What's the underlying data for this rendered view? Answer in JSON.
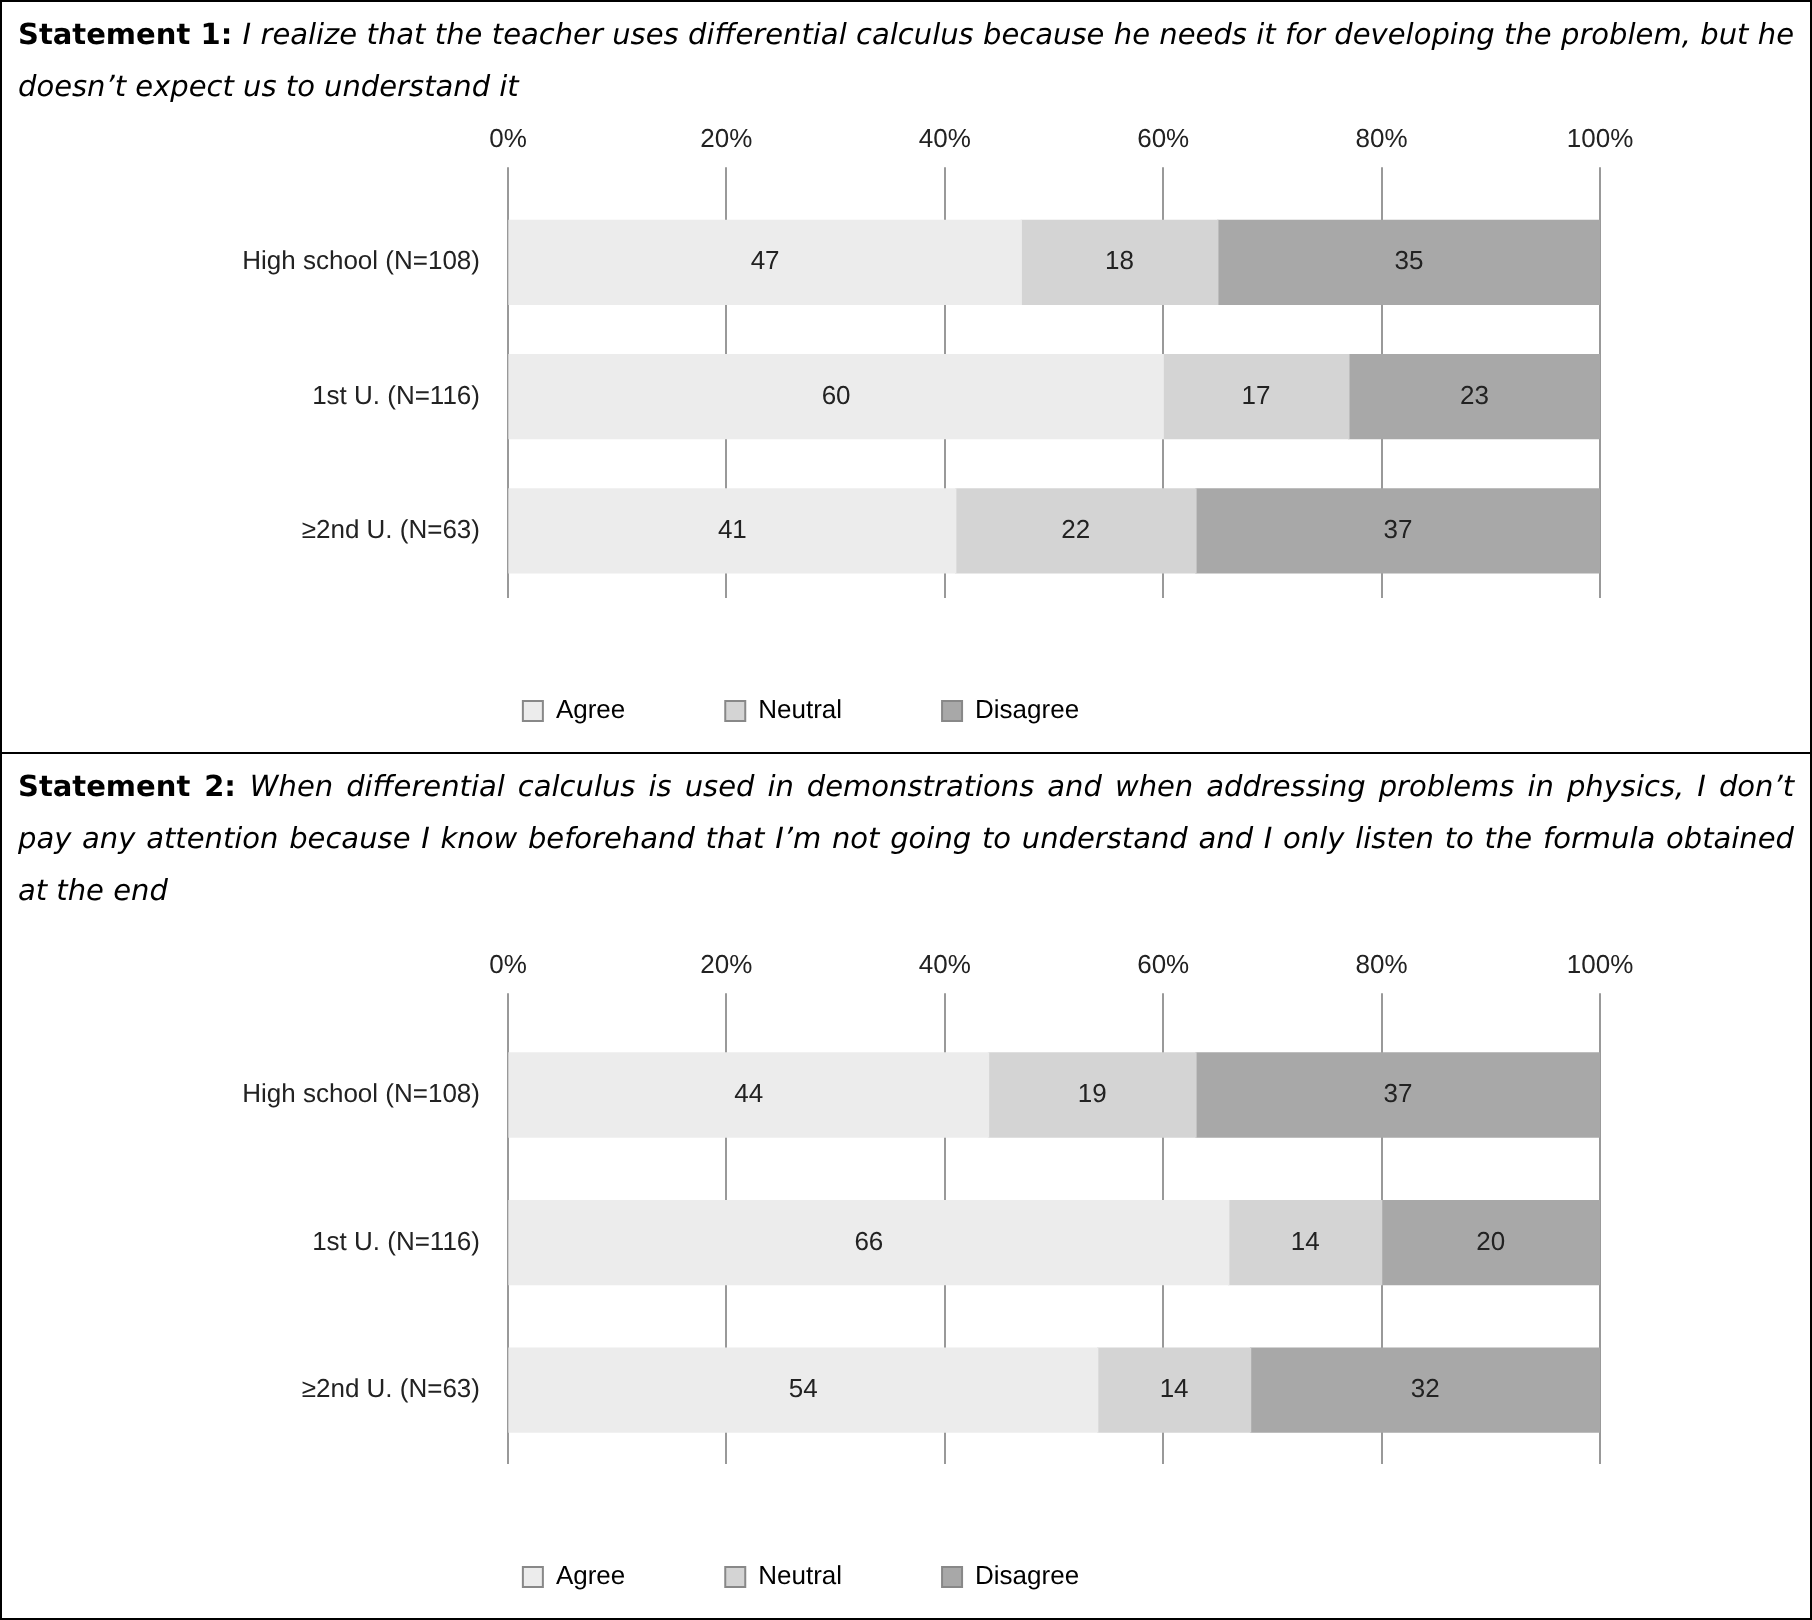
{
  "chart_data": [
    {
      "type": "bar",
      "orientation": "horizontal",
      "stacked": true,
      "title": "Statement 1: I realize that the teacher uses differential calculus because he needs it for developing the problem, but he doesn’t expect us to understand it",
      "categories": [
        "High school (N=108)",
        "1st U. (N=116)",
        "≥2nd U. (N=63)"
      ],
      "series": [
        {
          "name": "Agree",
          "color": "#ececec",
          "values": [
            47,
            60,
            41
          ]
        },
        {
          "name": "Neutral",
          "color": "#d4d4d4",
          "values": [
            18,
            17,
            22
          ]
        },
        {
          "name": "Disagree",
          "color": "#a8a8a8",
          "values": [
            35,
            23,
            37
          ]
        }
      ],
      "xlim": [
        0,
        100
      ],
      "xticks": [
        {
          "value": 0,
          "label": "0%"
        },
        {
          "value": 20,
          "label": "20%"
        },
        {
          "value": 40,
          "label": "40%"
        },
        {
          "value": 60,
          "label": "60%"
        },
        {
          "value": 80,
          "label": "80%"
        },
        {
          "value": 100,
          "label": "100%"
        }
      ],
      "grid": "x",
      "legend": "bottom",
      "data_labels": true
    },
    {
      "type": "bar",
      "orientation": "horizontal",
      "stacked": true,
      "title": "Statement 2: When differential calculus is used in demonstrations and when addressing problems in physics, I don’t pay any attention because I know beforehand that I’m not going to understand and I only listen to the formula obtained at the end",
      "categories": [
        "High school (N=108)",
        "1st U. (N=116)",
        "≥2nd U. (N=63)"
      ],
      "series": [
        {
          "name": "Agree",
          "color": "#ececec",
          "values": [
            44,
            66,
            54
          ]
        },
        {
          "name": "Neutral",
          "color": "#d4d4d4",
          "values": [
            19,
            14,
            14
          ]
        },
        {
          "name": "Disagree",
          "color": "#a8a8a8",
          "values": [
            37,
            20,
            32
          ]
        }
      ],
      "xlim": [
        0,
        100
      ],
      "xticks": [
        {
          "value": 0,
          "label": "0%"
        },
        {
          "value": 20,
          "label": "20%"
        },
        {
          "value": 40,
          "label": "40%"
        },
        {
          "value": 60,
          "label": "60%"
        },
        {
          "value": 80,
          "label": "80%"
        },
        {
          "value": 100,
          "label": "100%"
        }
      ],
      "grid": "x",
      "legend": "bottom",
      "data_labels": true
    }
  ]
}
